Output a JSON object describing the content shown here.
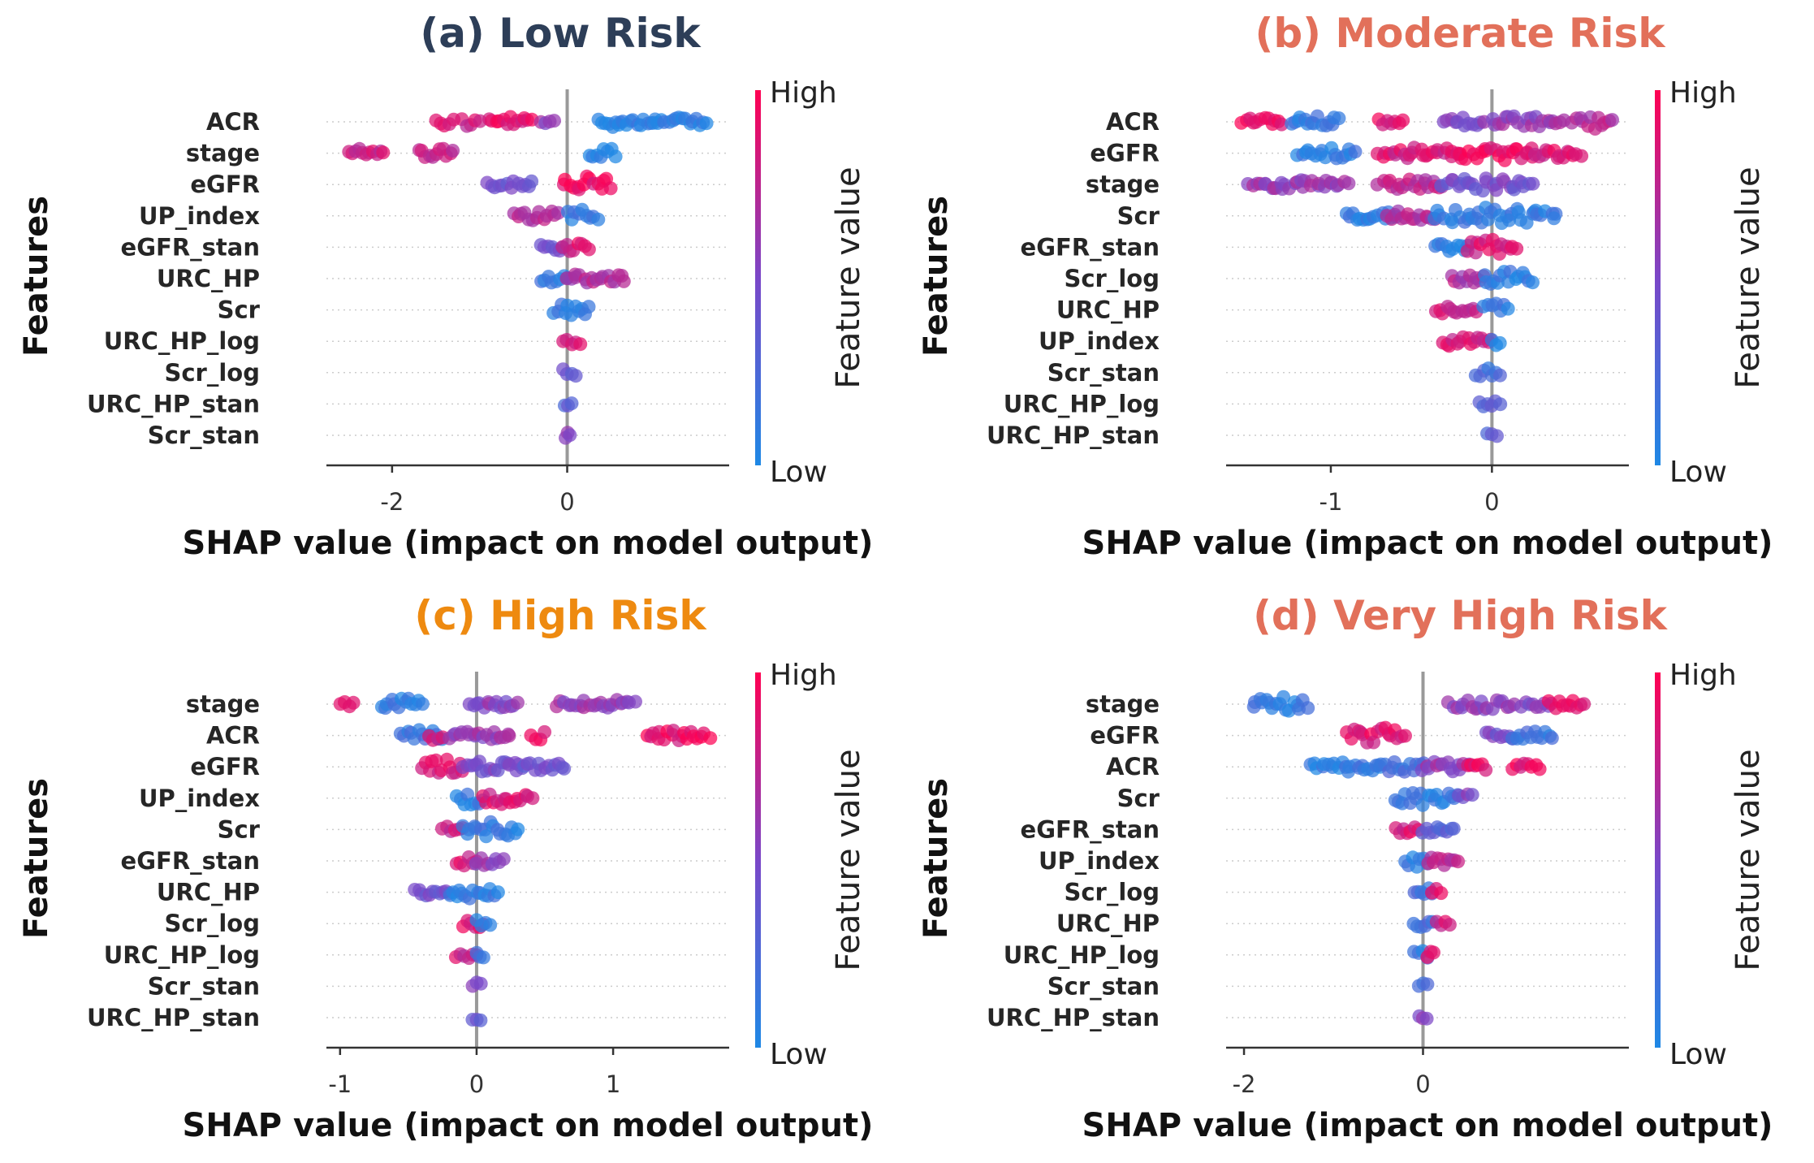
{
  "colors": {
    "low": "#1e88e5",
    "high": "#ff0052"
  },
  "colorbar": {
    "high_label": "High",
    "low_label": "Low",
    "title": "Feature value"
  },
  "chart_data": [
    {
      "type": "scatter",
      "title": "(a) Low Risk",
      "title_color": "#2d3e58",
      "xlabel": "SHAP value (impact on model output)",
      "ylabel": "Features",
      "xlim": [
        -2.75,
        1.85
      ],
      "xticks": [
        -2,
        0
      ],
      "xtick_labels": [
        "-2",
        "0"
      ],
      "features": [
        "ACR",
        "stage",
        "eGFR",
        "UP_index",
        "eGFR_stan",
        "URC_HP",
        "Scr",
        "URC_HP_log",
        "Scr_log",
        "URC_HP_stan",
        "Scr_stan"
      ],
      "clusters": [
        [
          [
            -1.5,
            -1.3,
            0.85,
            0.35
          ],
          [
            -1.2,
            -1.0,
            0.8,
            0.5
          ],
          [
            -0.9,
            -0.4,
            0.9,
            0.45
          ],
          [
            -0.3,
            -0.15,
            0.6,
            0.2
          ],
          [
            0.35,
            0.6,
            0.05,
            0.4
          ],
          [
            0.6,
            1.0,
            0.05,
            0.35
          ],
          [
            1.0,
            1.6,
            0.05,
            0.3
          ]
        ],
        [
          [
            -2.5,
            -2.1,
            0.8,
            0.35
          ],
          [
            -1.7,
            -1.3,
            0.75,
            0.35
          ],
          [
            0.25,
            0.55,
            0.05,
            0.45
          ]
        ],
        [
          [
            -0.9,
            -0.4,
            0.45,
            0.4
          ],
          [
            -0.05,
            0.5,
            0.9,
            0.7
          ]
        ],
        [
          [
            -0.6,
            -0.1,
            0.75,
            0.4
          ],
          [
            0.0,
            0.35,
            0.1,
            0.6
          ]
        ],
        [
          [
            -0.3,
            -0.05,
            0.4,
            0.3
          ],
          [
            -0.05,
            0.25,
            0.85,
            0.5
          ]
        ],
        [
          [
            -0.3,
            0.0,
            0.15,
            0.3
          ],
          [
            0.0,
            0.65,
            0.7,
            0.4
          ]
        ],
        [
          [
            -0.15,
            0.25,
            0.1,
            0.5
          ]
        ],
        [
          [
            -0.05,
            0.15,
            0.8,
            0.25
          ]
        ],
        [
          [
            -0.05,
            0.1,
            0.35,
            0.3
          ]
        ],
        [
          [
            -0.03,
            0.05,
            0.3,
            0.25
          ]
        ],
        [
          [
            -0.02,
            0.03,
            0.5,
            0.25
          ]
        ]
      ]
    },
    {
      "type": "scatter",
      "title": "(b) Moderate Risk",
      "title_color": "#e2705a",
      "xlabel": "SHAP value (impact on model output)",
      "ylabel": "Features",
      "xlim": [
        -1.65,
        0.85
      ],
      "xticks": [
        -1,
        0
      ],
      "xtick_labels": [
        "-1",
        "0"
      ],
      "features": [
        "ACR",
        "eGFR",
        "stage",
        "Scr",
        "eGFR_stan",
        "Scr_log",
        "URC_HP",
        "UP_index",
        "Scr_stan",
        "URC_HP_log",
        "URC_HP_stan"
      ],
      "clusters": [
        [
          [
            -1.55,
            -1.3,
            0.9,
            0.3
          ],
          [
            -1.25,
            -0.95,
            0.1,
            0.45
          ],
          [
            -0.7,
            -0.55,
            0.9,
            0.3
          ],
          [
            -0.3,
            -0.05,
            0.55,
            0.35
          ],
          [
            0.0,
            0.45,
            0.6,
            0.45
          ],
          [
            0.5,
            0.75,
            0.7,
            0.6
          ]
        ],
        [
          [
            -1.2,
            -0.85,
            0.1,
            0.4
          ],
          [
            -0.7,
            -0.2,
            0.85,
            0.45
          ],
          [
            -0.2,
            0.25,
            0.95,
            0.75
          ],
          [
            0.25,
            0.55,
            0.85,
            0.45
          ]
        ],
        [
          [
            -1.5,
            -0.9,
            0.6,
            0.35
          ],
          [
            -0.7,
            -0.3,
            0.75,
            0.4
          ],
          [
            -0.3,
            0.25,
            0.45,
            0.5
          ]
        ],
        [
          [
            -0.9,
            -0.6,
            0.1,
            0.3
          ],
          [
            -0.65,
            -0.35,
            0.7,
            0.4
          ],
          [
            -0.35,
            0.4,
            0.1,
            0.7
          ]
        ],
        [
          [
            -0.35,
            -0.15,
            0.1,
            0.35
          ],
          [
            -0.15,
            0.15,
            0.85,
            0.6
          ]
        ],
        [
          [
            -0.25,
            -0.05,
            0.7,
            0.35
          ],
          [
            -0.05,
            0.25,
            0.1,
            0.55
          ]
        ],
        [
          [
            -0.35,
            -0.1,
            0.8,
            0.3
          ],
          [
            -0.05,
            0.1,
            0.1,
            0.5
          ]
        ],
        [
          [
            -0.3,
            0.0,
            0.85,
            0.45
          ],
          [
            0.0,
            0.05,
            0.05,
            0.3
          ]
        ],
        [
          [
            -0.1,
            0.05,
            0.2,
            0.3
          ]
        ],
        [
          [
            -0.08,
            0.05,
            0.3,
            0.25
          ]
        ],
        [
          [
            -0.03,
            0.03,
            0.3,
            0.2
          ]
        ]
      ]
    },
    {
      "type": "scatter",
      "title": "(c) High Risk",
      "title_color": "#ee8a10",
      "xlabel": "SHAP value (impact on model output)",
      "ylabel": "Features",
      "xlim": [
        -1.1,
        1.85
      ],
      "xticks": [
        -1,
        0,
        1
      ],
      "xtick_labels": [
        "-1",
        "0",
        "1"
      ],
      "features": [
        "stage",
        "ACR",
        "eGFR",
        "UP_index",
        "Scr",
        "eGFR_stan",
        "URC_HP",
        "Scr_log",
        "URC_HP_log",
        "Scr_stan",
        "URC_HP_stan"
      ],
      "clusters": [
        [
          [
            -1.0,
            -0.9,
            0.9,
            0.25
          ],
          [
            -0.7,
            -0.4,
            0.1,
            0.45
          ],
          [
            -0.05,
            0.3,
            0.55,
            0.25
          ],
          [
            0.6,
            1.15,
            0.6,
            0.35
          ]
        ],
        [
          [
            -0.55,
            -0.25,
            0.15,
            0.45
          ],
          [
            -0.35,
            -0.25,
            0.8,
            0.35
          ],
          [
            -0.2,
            0.25,
            0.6,
            0.3
          ],
          [
            0.4,
            0.5,
            0.9,
            0.3
          ],
          [
            1.25,
            1.7,
            0.9,
            0.35
          ]
        ],
        [
          [
            -0.4,
            -0.1,
            0.85,
            0.6
          ],
          [
            -0.1,
            0.3,
            0.5,
            0.45
          ],
          [
            0.3,
            0.65,
            0.4,
            0.3
          ]
        ],
        [
          [
            -0.15,
            0.05,
            0.1,
            0.55
          ],
          [
            0.05,
            0.4,
            0.85,
            0.5
          ]
        ],
        [
          [
            -0.25,
            -0.1,
            0.8,
            0.3
          ],
          [
            -0.1,
            0.3,
            0.1,
            0.6
          ]
        ],
        [
          [
            -0.15,
            0.0,
            0.85,
            0.35
          ],
          [
            0.0,
            0.2,
            0.6,
            0.35
          ]
        ],
        [
          [
            -0.45,
            -0.2,
            0.45,
            0.3
          ],
          [
            -0.2,
            0.15,
            0.1,
            0.5
          ]
        ],
        [
          [
            -0.1,
            0.05,
            0.85,
            0.3
          ],
          [
            0.0,
            0.1,
            0.1,
            0.4
          ]
        ],
        [
          [
            -0.15,
            0.0,
            0.8,
            0.25
          ],
          [
            0.0,
            0.05,
            0.1,
            0.3
          ]
        ],
        [
          [
            -0.03,
            0.03,
            0.5,
            0.25
          ]
        ],
        [
          [
            -0.03,
            0.03,
            0.4,
            0.25
          ]
        ]
      ]
    },
    {
      "type": "scatter",
      "title": "(d) Very High Risk",
      "title_color": "#e2705a",
      "xlabel": "SHAP value (impact on model output)",
      "ylabel": "Features",
      "xlim": [
        -2.2,
        2.3
      ],
      "xticks": [
        -2,
        0
      ],
      "xtick_labels": [
        "-2",
        "0"
      ],
      "features": [
        "stage",
        "eGFR",
        "ACR",
        "Scr",
        "eGFR_stan",
        "UP_index",
        "Scr_log",
        "URC_HP",
        "URC_HP_log",
        "Scr_stan",
        "URC_HP_stan"
      ],
      "clusters": [
        [
          [
            -1.9,
            -1.3,
            0.1,
            0.6
          ],
          [
            0.3,
            1.0,
            0.6,
            0.4
          ],
          [
            1.1,
            1.4,
            0.5,
            0.25
          ],
          [
            1.4,
            1.8,
            0.9,
            0.35
          ]
        ],
        [
          [
            -0.85,
            -0.2,
            0.9,
            0.65
          ],
          [
            0.7,
            1.0,
            0.45,
            0.3
          ],
          [
            1.0,
            1.45,
            0.15,
            0.35
          ]
        ],
        [
          [
            -1.25,
            -0.5,
            0.1,
            0.4
          ],
          [
            -0.5,
            0.0,
            0.2,
            0.45
          ],
          [
            0.0,
            0.5,
            0.6,
            0.45
          ],
          [
            0.5,
            0.7,
            0.9,
            0.3
          ],
          [
            1.0,
            1.3,
            0.9,
            0.25
          ]
        ],
        [
          [
            -0.3,
            0.4,
            0.1,
            0.6
          ],
          [
            0.4,
            0.55,
            0.5,
            0.3
          ]
        ],
        [
          [
            -0.3,
            -0.05,
            0.85,
            0.4
          ],
          [
            0.0,
            0.35,
            0.3,
            0.35
          ]
        ],
        [
          [
            -0.2,
            0.05,
            0.1,
            0.45
          ],
          [
            0.05,
            0.4,
            0.7,
            0.35
          ]
        ],
        [
          [
            -0.1,
            0.1,
            0.15,
            0.35
          ],
          [
            0.1,
            0.2,
            0.9,
            0.3
          ]
        ],
        [
          [
            -0.1,
            0.1,
            0.2,
            0.35
          ],
          [
            0.15,
            0.3,
            0.85,
            0.3
          ]
        ],
        [
          [
            -0.1,
            0.05,
            0.1,
            0.3
          ],
          [
            0.05,
            0.12,
            0.9,
            0.25
          ]
        ],
        [
          [
            -0.05,
            0.05,
            0.2,
            0.25
          ]
        ],
        [
          [
            -0.04,
            0.04,
            0.5,
            0.25
          ]
        ]
      ]
    }
  ]
}
